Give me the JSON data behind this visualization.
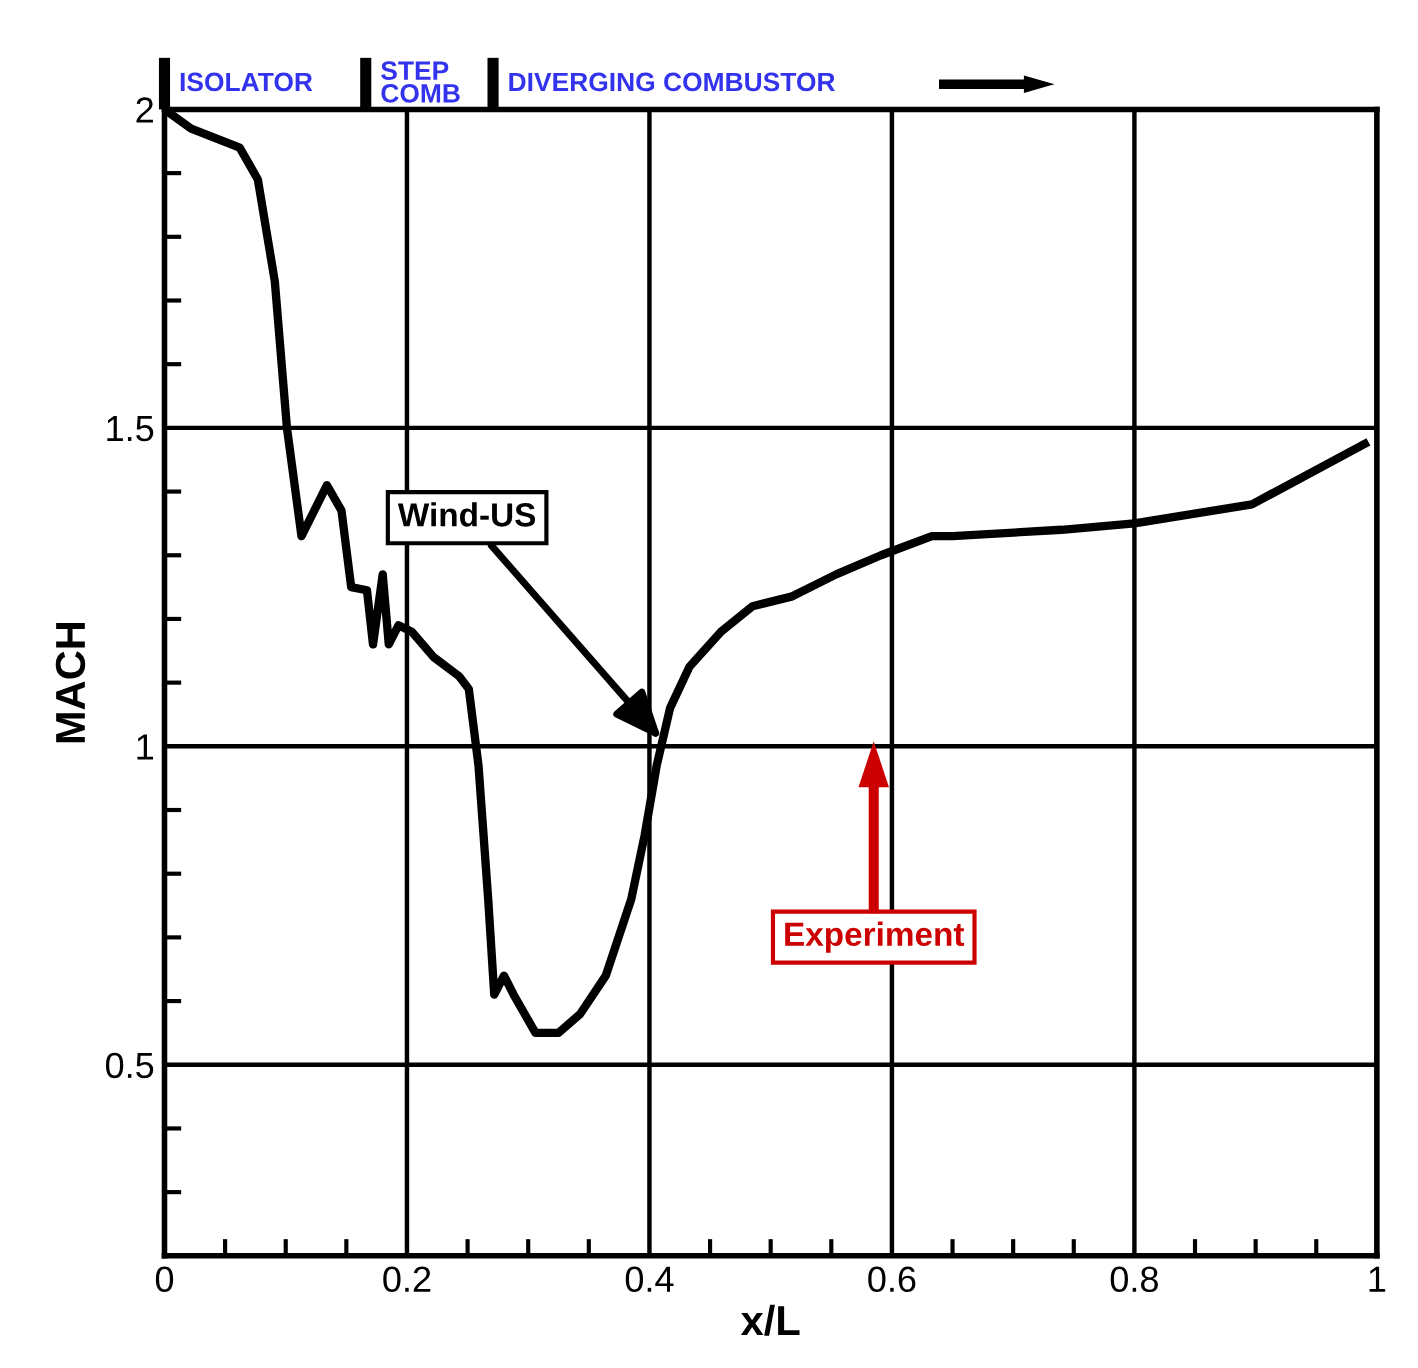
{
  "chart_data": {
    "type": "line",
    "xlabel": "x/L",
    "ylabel": "MACH",
    "x": [
      0,
      0.022,
      0.062,
      0.077,
      0.091,
      0.101,
      0.113,
      0.134,
      0.146,
      0.154,
      0.167,
      0.172,
      0.18,
      0.185,
      0.193,
      0.204,
      0.222,
      0.243,
      0.251,
      0.259,
      0.267,
      0.272,
      0.28,
      0.288,
      0.306,
      0.325,
      0.343,
      0.364,
      0.385,
      0.396,
      0.406,
      0.417,
      0.433,
      0.459,
      0.485,
      0.517,
      0.554,
      0.591,
      0.633,
      0.65,
      0.74,
      0.8,
      0.897,
      0.99
    ],
    "series": [
      {
        "color": "#000000",
        "values": [
          2.0,
          1.97,
          1.94,
          1.89,
          1.73,
          1.5,
          1.33,
          1.41,
          1.37,
          1.25,
          1.245,
          1.16,
          1.27,
          1.16,
          1.19,
          1.18,
          1.14,
          1.11,
          1.09,
          0.97,
          0.76,
          0.61,
          0.64,
          0.61,
          0.55,
          0.55,
          0.58,
          0.64,
          0.76,
          0.86,
          0.97,
          1.06,
          1.125,
          1.18,
          1.22,
          1.235,
          1.27,
          1.3,
          1.33,
          1.33,
          1.34,
          1.35,
          1.38,
          1.475
        ]
      }
    ],
    "xlim": [
      0,
      1
    ],
    "ylim": [
      0.2,
      2
    ],
    "xticks": [
      0,
      0.2,
      0.4,
      0.6,
      0.8,
      1
    ],
    "yticks": [
      0.5,
      1,
      1.5,
      2
    ],
    "grid": true,
    "marker": "none",
    "line_style": "solid",
    "annotations": [
      {
        "text": "Wind-US",
        "x": 0.41,
        "y": 1.01
      },
      "Experiment",
      "ISOLATOR",
      "STEP\nCOMB",
      "DIVERGING COMBUSTOR"
    ]
  }
}
